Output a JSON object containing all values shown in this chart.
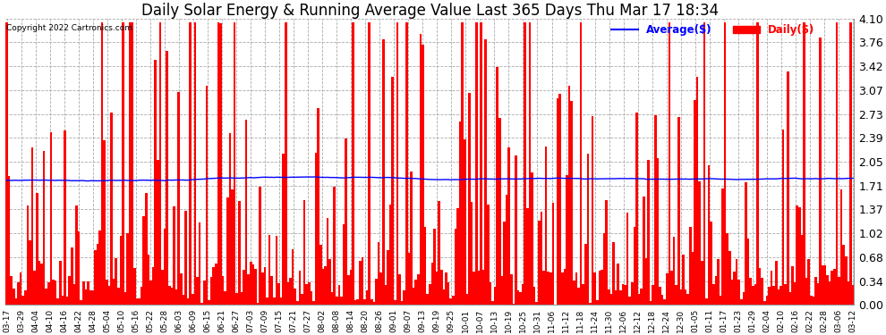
{
  "title": "Daily Solar Energy & Running Average Value Last 365 Days Thu Mar 17 18:34",
  "copyright": "Copyright 2022 Cartronics.com",
  "legend_avg": "Average($)",
  "legend_daily": "Daily($)",
  "avg_color": "blue",
  "daily_color": "red",
  "ylim": [
    0.0,
    4.1
  ],
  "yticks": [
    0.0,
    0.34,
    0.68,
    1.02,
    1.37,
    1.71,
    2.05,
    2.39,
    2.73,
    3.07,
    3.42,
    3.76,
    4.1
  ],
  "bg_color": "#ffffff",
  "grid_color": "#aaaaaa",
  "title_fontsize": 12,
  "bar_width": 1.0,
  "avg_value": 1.78,
  "xtick_labels": [
    "03-17",
    "03-29",
    "04-04",
    "04-10",
    "04-16",
    "04-22",
    "04-28",
    "05-04",
    "05-10",
    "05-16",
    "05-22",
    "05-28",
    "06-03",
    "06-09",
    "06-15",
    "06-21",
    "06-27",
    "07-03",
    "07-09",
    "07-15",
    "07-21",
    "07-27",
    "08-02",
    "08-08",
    "08-14",
    "08-20",
    "08-26",
    "09-01",
    "09-07",
    "09-13",
    "09-19",
    "09-25",
    "10-01",
    "10-07",
    "10-13",
    "10-19",
    "10-25",
    "10-31",
    "11-06",
    "11-12",
    "11-18",
    "11-24",
    "11-30",
    "12-06",
    "12-12",
    "12-18",
    "12-24",
    "12-30",
    "01-05",
    "01-11",
    "01-17",
    "01-23",
    "01-29",
    "02-04",
    "02-10",
    "02-16",
    "02-22",
    "02-28",
    "03-06",
    "03-12"
  ]
}
